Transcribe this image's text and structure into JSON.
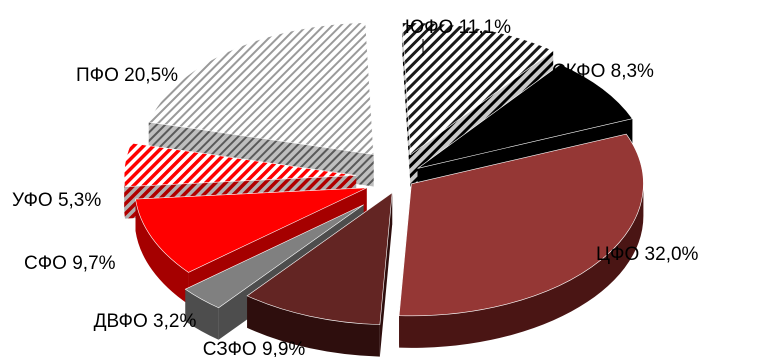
{
  "chart_data": {
    "type": "pie",
    "style": "3d-exploded",
    "title": "",
    "slices": [
      {
        "key": "yufo",
        "label": "ЮФО 11,1%",
        "name": "ЮФО",
        "value": 11.1,
        "color": "#ffffff",
        "pattern": "dark-diagonal-stripes"
      },
      {
        "key": "skfo",
        "label": "СКФО 8,3%",
        "name": "СКФО",
        "value": 8.3,
        "color": "#000000",
        "pattern": "solid"
      },
      {
        "key": "tsfo",
        "label": "ЦФО 32,0%",
        "name": "ЦФО",
        "value": 32.0,
        "color": "#953735",
        "pattern": "solid"
      },
      {
        "key": "szfo",
        "label": "СЗФО 9,9%",
        "name": "СЗФО",
        "value": 9.9,
        "color": "#632523",
        "pattern": "solid"
      },
      {
        "key": "dvfo",
        "label": "ДВФО 3,2%",
        "name": "ДВФО",
        "value": 3.2,
        "color": "#808080",
        "pattern": "solid"
      },
      {
        "key": "sfo",
        "label": "СФО 9,7%",
        "name": "СФО",
        "value": 9.7,
        "color": "#ff0000",
        "pattern": "solid"
      },
      {
        "key": "ufo",
        "label": "УФО 5,3%",
        "name": "УФО",
        "value": 5.3,
        "color": "#ff0000",
        "pattern": "red-diagonal-stripes"
      },
      {
        "key": "pfo",
        "label": "ПФО 20,5%",
        "name": "ПФО",
        "value": 20.5,
        "color": "#a6a6a6",
        "pattern": "light-diagonal-stripes"
      }
    ]
  }
}
